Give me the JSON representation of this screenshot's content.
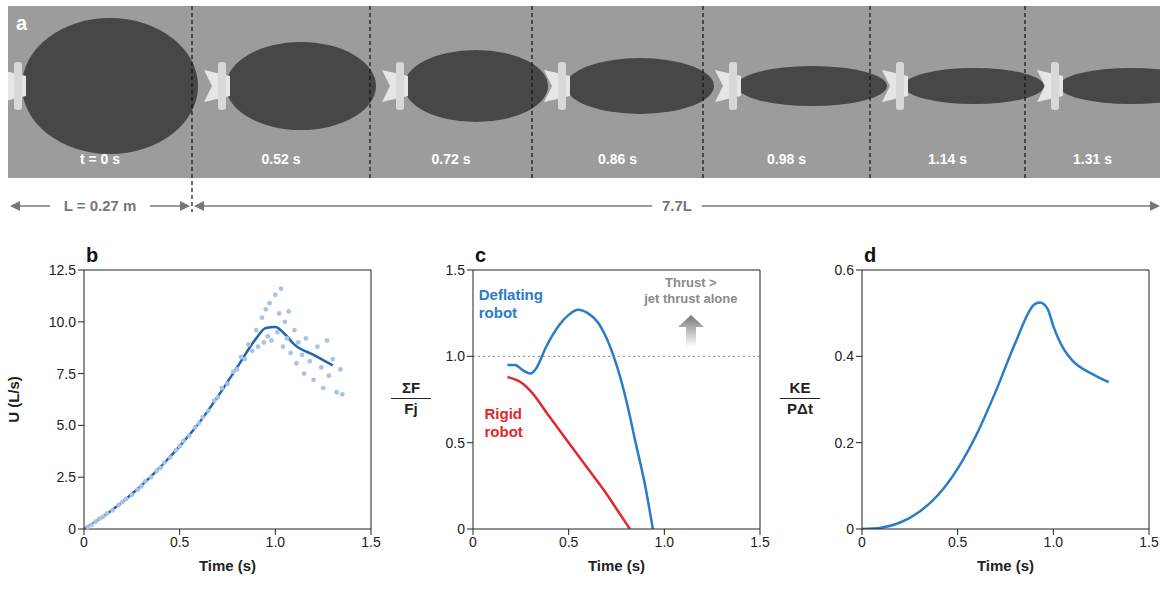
{
  "panel_a": {
    "label": "a",
    "frames": [
      "t = 0 s",
      "0.52 s",
      "0.72 s",
      "0.86 s",
      "0.98 s",
      "1.14 s",
      "1.31 s"
    ],
    "scale_bar": "L = 0.27 m",
    "distance": "7.7L"
  },
  "chart_data": [
    {
      "type": "line",
      "panel_label": "b",
      "xlabel": "Time (s)",
      "ylabel": "U (L/s)",
      "xlim": [
        0,
        1.5
      ],
      "xticks": [
        0,
        0.5,
        {
          "value": 1,
          "label": "1.0"
        },
        1.5
      ],
      "ylim": [
        0,
        12.5
      ],
      "yticks": [
        0,
        2.5,
        {
          "value": 5,
          "label": "5.0"
        },
        7.5,
        {
          "value": 10,
          "label": "10.0"
        },
        12.5
      ],
      "series": [
        {
          "type": "scatter",
          "marker": "circle",
          "color": "#a9c3e8",
          "x": [
            0.02,
            0.04,
            0.06,
            0.08,
            0.1,
            0.12,
            0.15,
            0.18,
            0.2,
            0.22,
            0.25,
            0.28,
            0.3,
            0.32,
            0.35,
            0.38,
            0.4,
            0.42,
            0.45,
            0.48,
            0.5,
            0.52,
            0.55,
            0.58,
            0.6,
            0.62,
            0.65,
            0.68,
            0.7,
            0.72,
            0.75,
            0.78,
            0.8,
            0.82,
            0.84,
            0.86,
            0.88,
            0.9,
            0.91,
            0.93,
            0.94,
            0.95,
            0.96,
            0.97,
            0.98,
            1.0,
            1.01,
            1.02,
            1.03,
            1.04,
            1.05,
            1.06,
            1.07,
            1.08,
            1.1,
            1.11,
            1.12,
            1.14,
            1.15,
            1.16,
            1.18,
            1.2,
            1.22,
            1.24,
            1.25,
            1.27,
            1.28,
            1.3,
            1.32,
            1.34,
            1.35
          ],
          "values": [
            0.1,
            0.2,
            0.35,
            0.5,
            0.6,
            0.75,
            0.9,
            1.15,
            1.3,
            1.45,
            1.65,
            1.9,
            2.05,
            2.3,
            2.5,
            2.8,
            2.95,
            3.2,
            3.45,
            3.8,
            4.0,
            4.25,
            4.5,
            4.9,
            5.1,
            5.4,
            5.7,
            6.2,
            6.35,
            6.8,
            7.0,
            7.6,
            7.7,
            8.3,
            8.2,
            8.9,
            8.6,
            9.6,
            8.8,
            10.2,
            9.0,
            10.6,
            9.3,
            10.9,
            9.1,
            11.3,
            9.5,
            10.4,
            11.6,
            8.8,
            10.0,
            9.2,
            10.5,
            8.5,
            9.6,
            8.0,
            9.0,
            8.4,
            7.5,
            9.2,
            8.1,
            7.2,
            8.8,
            7.8,
            6.8,
            9.1,
            7.4,
            8.2,
            6.6,
            7.7,
            6.5
          ]
        },
        {
          "type": "line",
          "color": "#1f66b0",
          "x": [
            0,
            0.1,
            0.2,
            0.3,
            0.4,
            0.5,
            0.6,
            0.7,
            0.8,
            0.9,
            0.95,
            1.0,
            1.05,
            1.1,
            1.2,
            1.3
          ],
          "values": [
            0,
            0.6,
            1.3,
            2.1,
            3.0,
            4.0,
            5.1,
            6.4,
            7.8,
            9.2,
            9.7,
            9.75,
            9.4,
            8.9,
            8.4,
            7.9
          ]
        }
      ]
    },
    {
      "type": "line",
      "panel_label": "c",
      "xlabel": "Time (s)",
      "ylabel": {
        "numerator": "ΣF",
        "denominator": "Fj"
      },
      "xlim": [
        0,
        1.5
      ],
      "xticks": [
        0,
        0.5,
        {
          "value": 1,
          "label": "1.0"
        },
        1.5
      ],
      "ylim": [
        0,
        1.5
      ],
      "yticks": [
        0,
        0.5,
        {
          "value": 1,
          "label": "1.0"
        },
        1.5
      ],
      "threshold": 1,
      "annotation": "Thrust >\njet thrust alone",
      "series": [
        {
          "name": "Deflating robot",
          "color": "#2a7cc7",
          "x": [
            0.18,
            0.22,
            0.26,
            0.3,
            0.33,
            0.38,
            0.45,
            0.5,
            0.55,
            0.6,
            0.65,
            0.7,
            0.75,
            0.8,
            0.85,
            0.9,
            0.94
          ],
          "values": [
            0.95,
            0.95,
            0.92,
            0.9,
            0.93,
            1.05,
            1.18,
            1.24,
            1.27,
            1.25,
            1.2,
            1.1,
            0.95,
            0.75,
            0.5,
            0.25,
            0
          ]
        },
        {
          "name": "Rigid robot",
          "color": "#e0282e",
          "x": [
            0.18,
            0.25,
            0.3,
            0.4,
            0.5,
            0.6,
            0.7,
            0.76,
            0.82
          ],
          "values": [
            0.88,
            0.85,
            0.8,
            0.65,
            0.5,
            0.35,
            0.2,
            0.1,
            0
          ]
        }
      ]
    },
    {
      "type": "line",
      "panel_label": "d",
      "xlabel": "Time (s)",
      "ylabel": {
        "numerator": "KE",
        "denominator": "PΔt"
      },
      "xlim": [
        0,
        1.5
      ],
      "xticks": [
        0,
        0.5,
        {
          "value": 1,
          "label": "1.0"
        },
        1.5
      ],
      "ylim": [
        0,
        0.6
      ],
      "yticks": [
        0,
        0.2,
        0.4,
        0.6
      ],
      "series": [
        {
          "color": "#2a7cc7",
          "x": [
            0,
            0.1,
            0.2,
            0.3,
            0.4,
            0.5,
            0.6,
            0.7,
            0.8,
            0.9,
            0.93,
            0.97,
            1.0,
            1.05,
            1.1,
            1.2,
            1.29
          ],
          "values": [
            0,
            0.003,
            0.015,
            0.04,
            0.08,
            0.14,
            0.22,
            0.32,
            0.43,
            0.52,
            0.525,
            0.51,
            0.47,
            0.42,
            0.39,
            0.36,
            0.34
          ]
        }
      ]
    }
  ]
}
